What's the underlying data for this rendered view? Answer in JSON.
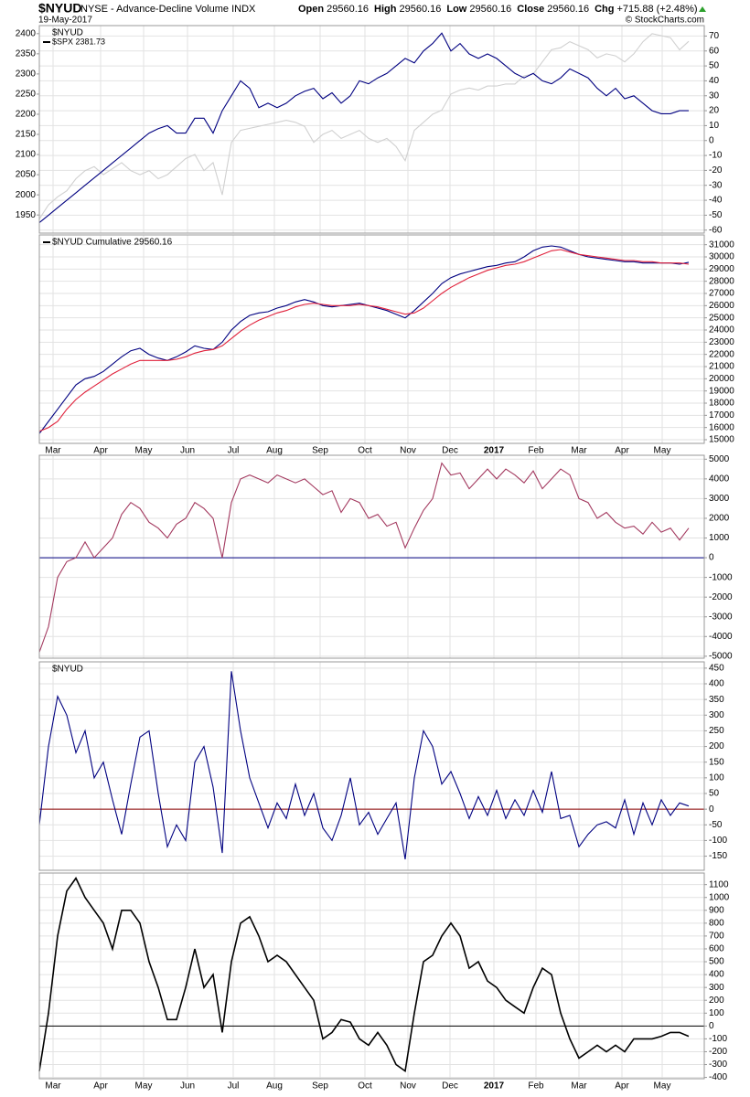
{
  "header": {
    "symbol": "$NYUD",
    "description": "NYSE - Advance-Decline Volume INDX",
    "date": "19-May-2017",
    "quote": [
      {
        "label": "Open",
        "value": "29560.16"
      },
      {
        "label": "High",
        "value": "29560.16"
      },
      {
        "label": "Low",
        "value": "29560.16"
      },
      {
        "label": "Close",
        "value": "29560.16"
      },
      {
        "label": "Chg",
        "value": "+715.88 (+2.48%)"
      }
    ],
    "credit": "© StockCharts.com"
  },
  "chart_data": [
    {
      "type": "line",
      "ylim": [
        1905,
        2420
      ],
      "yticks": [
        1950,
        2000,
        2050,
        2100,
        2150,
        2200,
        2250,
        2300,
        2350,
        2400
      ],
      "y2lim": [
        -62,
        77
      ],
      "y2ticks": [
        -60,
        -50,
        -40,
        -30,
        -20,
        -10,
        0,
        10,
        20,
        30,
        40,
        50,
        60,
        70
      ],
      "grid": true,
      "legend_title": "$NYUD",
      "series": [
        {
          "name": "$SPX 2381.73",
          "color": "#d0d0d0",
          "axis": "y",
          "values": [
            1940,
            1975,
            1995,
            2010,
            2040,
            2060,
            2070,
            2050,
            2065,
            2080,
            2060,
            2050,
            2060,
            2040,
            2050,
            2070,
            2090,
            2100,
            2060,
            2080,
            2000,
            2130,
            2160,
            2165,
            2170,
            2175,
            2180,
            2185,
            2180,
            2170,
            2130,
            2150,
            2160,
            2140,
            2150,
            2160,
            2140,
            2130,
            2140,
            2120,
            2085,
            2160,
            2180,
            2200,
            2210,
            2250,
            2260,
            2265,
            2260,
            2270,
            2270,
            2275,
            2275,
            2295,
            2300,
            2330,
            2360,
            2365,
            2380,
            2370,
            2360,
            2340,
            2350,
            2345,
            2330,
            2350,
            2380,
            2400,
            2395,
            2390,
            2360,
            2381
          ]
        },
        {
          "color": "#000080",
          "axis": "y2",
          "values": [
            -55,
            -50,
            -45,
            -40,
            -35,
            -30,
            -25,
            -20,
            -15,
            -10,
            -5,
            0,
            5,
            8,
            10,
            5,
            5,
            15,
            15,
            5,
            20,
            30,
            40,
            35,
            22,
            25,
            22,
            25,
            30,
            33,
            35,
            28,
            32,
            25,
            30,
            40,
            38,
            42,
            45,
            50,
            55,
            52,
            60,
            65,
            72,
            60,
            65,
            58,
            55,
            58,
            55,
            50,
            45,
            42,
            45,
            40,
            38,
            42,
            48,
            45,
            42,
            35,
            30,
            35,
            28,
            30,
            25,
            20,
            18,
            18,
            20,
            20
          ]
        }
      ]
    },
    {
      "type": "line",
      "ylim": [
        14700,
        31800
      ],
      "yticks": [
        15000,
        16000,
        17000,
        18000,
        19000,
        20000,
        21000,
        22000,
        23000,
        24000,
        25000,
        26000,
        27000,
        28000,
        29000,
        30000,
        31000
      ],
      "grid": true,
      "xlim": [
        0,
        72.7
      ],
      "xticks": [
        {
          "value": 1.5,
          "label": "Mar"
        },
        {
          "value": 6.7,
          "label": "Apr"
        },
        {
          "value": 11.4,
          "label": "May"
        },
        {
          "value": 16.2,
          "label": "Jun"
        },
        {
          "value": 21.2,
          "label": "Jul"
        },
        {
          "value": 25.7,
          "label": "Aug"
        },
        {
          "value": 30.7,
          "label": "Sep"
        },
        {
          "value": 35.6,
          "label": "Oct"
        },
        {
          "value": 40.3,
          "label": "Nov"
        },
        {
          "value": 44.9,
          "label": "Dec"
        },
        {
          "value": 49.7,
          "label": "2017",
          "bold": true
        },
        {
          "value": 54.3,
          "label": "Feb"
        },
        {
          "value": 59,
          "label": "Mar"
        },
        {
          "value": 63.7,
          "label": "Apr"
        },
        {
          "value": 68.1,
          "label": "May"
        }
      ],
      "series": [
        {
          "name": "$NYUD Cumulative 29560.16",
          "color": "#000080",
          "values": [
            15500,
            16500,
            17500,
            18500,
            19500,
            20000,
            20200,
            20600,
            21200,
            21800,
            22300,
            22500,
            22000,
            21700,
            21500,
            21800,
            22200,
            22700,
            22500,
            22400,
            23000,
            24000,
            24700,
            25200,
            25400,
            25500,
            25800,
            26000,
            26300,
            26500,
            26300,
            26000,
            25900,
            26000,
            26100,
            26200,
            26000,
            25800,
            25600,
            25300,
            25000,
            25600,
            26300,
            27000,
            27800,
            28300,
            28600,
            28800,
            29000,
            29200,
            29300,
            29500,
            29600,
            30000,
            30500,
            30800,
            30900,
            30800,
            30500,
            30200,
            30000,
            29900,
            29800,
            29700,
            29600,
            29600,
            29500,
            29500,
            29500,
            29500,
            29400,
            29560
          ]
        },
        {
          "color": "#e0203a",
          "values": [
            15700,
            16000,
            16500,
            17500,
            18300,
            18900,
            19400,
            19900,
            20400,
            20800,
            21200,
            21500,
            21500,
            21500,
            21500,
            21600,
            21800,
            22100,
            22300,
            22400,
            22700,
            23300,
            23900,
            24400,
            24800,
            25100,
            25400,
            25600,
            25900,
            26100,
            26200,
            26100,
            26000,
            26000,
            26000,
            26100,
            26000,
            25900,
            25700,
            25500,
            25300,
            25400,
            25800,
            26400,
            27000,
            27500,
            27900,
            28300,
            28600,
            28900,
            29100,
            29300,
            29400,
            29600,
            29900,
            30200,
            30500,
            30600,
            30400,
            30200,
            30100,
            30000,
            29900,
            29800,
            29700,
            29700,
            29600,
            29600,
            29500,
            29500,
            29500,
            29400
          ]
        }
      ]
    },
    {
      "type": "line",
      "ylim": [
        -5100,
        5200
      ],
      "yticks": [
        -5000,
        -4000,
        -3000,
        -2000,
        -1000,
        0,
        1000,
        2000,
        3000,
        4000,
        5000
      ],
      "grid": true,
      "reference_line": {
        "value": 0,
        "color": "#000080"
      },
      "series": [
        {
          "color": "#a3395f",
          "values": [
            -4800,
            -3500,
            -1000,
            -200,
            0,
            800,
            0,
            500,
            1000,
            2200,
            2800,
            2500,
            1800,
            1500,
            1000,
            1700,
            2000,
            2800,
            2500,
            2000,
            0,
            2800,
            4000,
            4200,
            4000,
            3800,
            4200,
            4000,
            3800,
            4000,
            3600,
            3200,
            3400,
            2300,
            3000,
            2800,
            2000,
            2200,
            1600,
            1800,
            500,
            1500,
            2400,
            3000,
            4800,
            4200,
            4300,
            3500,
            4000,
            4500,
            4000,
            4500,
            4200,
            3800,
            4400,
            3500,
            4000,
            4500,
            4200,
            3000,
            2800,
            2000,
            2300,
            1800,
            1500,
            1600,
            1200,
            1800,
            1300,
            1500,
            900,
            1500
          ]
        }
      ]
    },
    {
      "type": "line",
      "ylim": [
        -195,
        470
      ],
      "yticks": [
        -150,
        -100,
        -50,
        0,
        50,
        100,
        150,
        200,
        250,
        300,
        350,
        400,
        450
      ],
      "grid": true,
      "legend_title": "$NYUD",
      "reference_line": {
        "value": 0,
        "color": "#8b0000"
      },
      "series": [
        {
          "color": "#000080",
          "values": [
            -50,
            200,
            360,
            300,
            180,
            250,
            100,
            150,
            30,
            -80,
            80,
            230,
            250,
            50,
            -120,
            -50,
            -100,
            150,
            200,
            70,
            -140,
            440,
            250,
            100,
            20,
            -60,
            20,
            -30,
            80,
            -20,
            50,
            -60,
            -100,
            -20,
            100,
            -50,
            -10,
            -80,
            -30,
            20,
            -160,
            100,
            250,
            200,
            80,
            120,
            50,
            -30,
            40,
            -20,
            60,
            -30,
            30,
            -20,
            60,
            -10,
            120,
            -30,
            -20,
            -120,
            -80,
            -50,
            -40,
            -60,
            30,
            -80,
            20,
            -50,
            30,
            -20,
            20,
            10
          ]
        }
      ]
    },
    {
      "type": "line",
      "ylim": [
        -410,
        1190
      ],
      "yticks": [
        -400,
        -300,
        -200,
        -100,
        0,
        100,
        200,
        300,
        400,
        500,
        600,
        700,
        800,
        900,
        1000,
        1100
      ],
      "grid": true,
      "xlim": [
        0,
        72.7
      ],
      "xticks": [
        {
          "value": 1.5,
          "label": "Mar"
        },
        {
          "value": 6.7,
          "label": "Apr"
        },
        {
          "value": 11.4,
          "label": "May"
        },
        {
          "value": 16.2,
          "label": "Jun"
        },
        {
          "value": 21.2,
          "label": "Jul"
        },
        {
          "value": 25.7,
          "label": "Aug"
        },
        {
          "value": 30.7,
          "label": "Sep"
        },
        {
          "value": 35.6,
          "label": "Oct"
        },
        {
          "value": 40.3,
          "label": "Nov"
        },
        {
          "value": 44.9,
          "label": "Dec"
        },
        {
          "value": 49.7,
          "label": "2017",
          "bold": true
        },
        {
          "value": 54.3,
          "label": "Feb"
        },
        {
          "value": 59,
          "label": "Mar"
        },
        {
          "value": 63.7,
          "label": "Apr"
        },
        {
          "value": 68.1,
          "label": "May"
        }
      ],
      "reference_line": {
        "value": 0,
        "color": "#000000"
      },
      "series": [
        {
          "color": "#000000",
          "values": [
            -350,
            100,
            700,
            1050,
            1150,
            1000,
            900,
            800,
            600,
            900,
            900,
            800,
            500,
            300,
            50,
            50,
            300,
            600,
            300,
            400,
            -50,
            500,
            800,
            850,
            700,
            500,
            550,
            500,
            400,
            300,
            200,
            -100,
            -50,
            50,
            30,
            -100,
            -150,
            -50,
            -150,
            -300,
            -350,
            100,
            500,
            550,
            700,
            800,
            700,
            450,
            500,
            350,
            300,
            200,
            150,
            100,
            300,
            450,
            400,
            100,
            -100,
            -250,
            -200,
            -150,
            -200,
            -150,
            -200,
            -100,
            -100,
            -100,
            -80,
            -50,
            -50,
            -80
          ]
        }
      ]
    }
  ]
}
